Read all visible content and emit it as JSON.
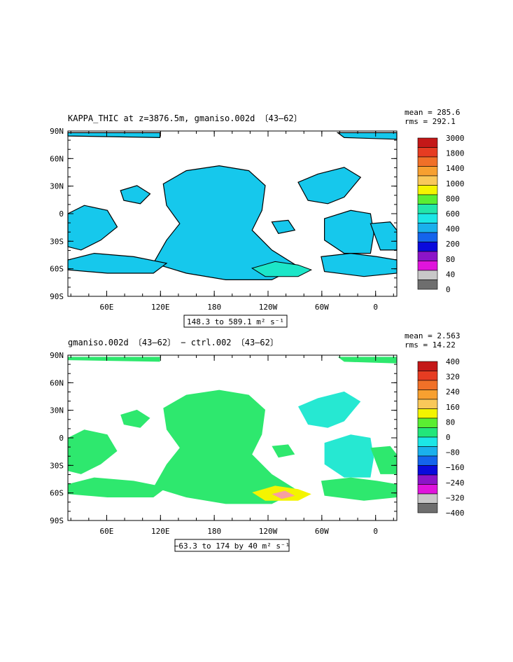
{
  "panels": [
    {
      "title": "KAPPA_THIC at z=3876.5m, gmaniso.002d 〔43–62〕",
      "stats": {
        "mean_label": "mean = 285.6",
        "rms_label": "rms = 292.1"
      },
      "range_label": "148.3 to 589.1 m² s⁻¹",
      "colorbar": {
        "labels": [
          "3000",
          "1800",
          "1400",
          "1000",
          "800",
          "600",
          "400",
          "200",
          "80",
          "40",
          "0"
        ],
        "colors": [
          "#c41818",
          "#e63c22",
          "#f07028",
          "#f7a030",
          "#f9c85a",
          "#f4f400",
          "#5aee32",
          "#22e6aa",
          "#1ce6e6",
          "#1ab0ec",
          "#1464ec",
          "#0a0adc",
          "#8c14c8",
          "#e014dc",
          "#c8c8c8",
          "#6e6e6e"
        ]
      },
      "ocean_fill": "#16c8ec",
      "hot_fill": "#1ce6c8",
      "contour_color": "#000000"
    },
    {
      "title": "gmaniso.002d 〔43–62〕 − ctrl.002 〔43–62〕",
      "stats": {
        "mean_label": "mean = 2.563",
        "rms_label": "rms = 14.22"
      },
      "range_label": "−63.3 to 174 by 40 m² s⁻¹",
      "colorbar": {
        "labels": [
          "400",
          "320",
          "240",
          "160",
          "80",
          "0",
          "−80",
          "−160",
          "−240",
          "−320",
          "−400"
        ],
        "colors": [
          "#c41818",
          "#e63c22",
          "#f07028",
          "#f7a030",
          "#f9c85a",
          "#f4f400",
          "#5aee32",
          "#22e67a",
          "#1ce6e6",
          "#1ab0ec",
          "#1464ec",
          "#0a0adc",
          "#8c14c8",
          "#e014dc",
          "#c8c8c8",
          "#6e6e6e"
        ]
      },
      "ocean_fill": "#2ee86e",
      "alt_fill": "#26e8d2",
      "hot_fill": "#f4f400",
      "hot_core": "#f7a0a0"
    }
  ],
  "axes": {
    "lat_labels": [
      "90N",
      "60N",
      "30N",
      "0",
      "30S",
      "60S",
      "90S"
    ],
    "lon_labels": [
      "60E",
      "120E",
      "180",
      "120W",
      "60W",
      "0"
    ]
  }
}
